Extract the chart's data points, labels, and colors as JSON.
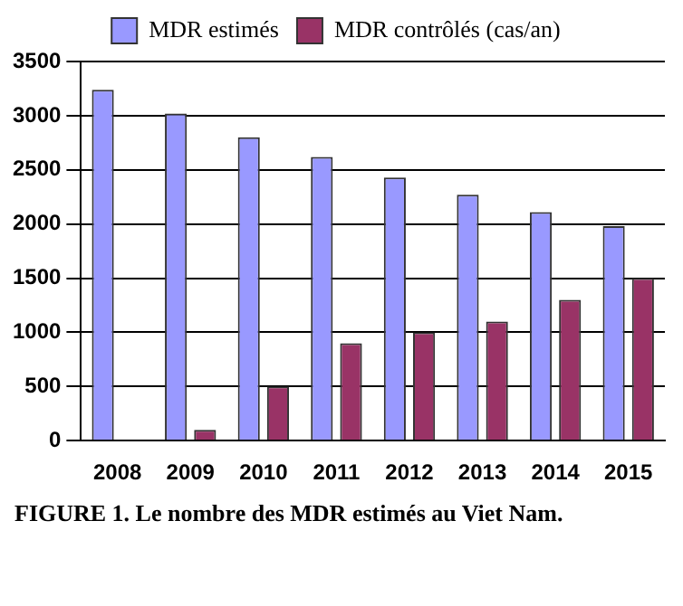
{
  "chart_data": {
    "type": "bar",
    "categories": [
      "2008",
      "2009",
      "2010",
      "2011",
      "2012",
      "2013",
      "2014",
      "2015"
    ],
    "series": [
      {
        "name": "MDR estimés",
        "color": "#9999ff",
        "values": [
          3240,
          3020,
          2800,
          2620,
          2430,
          2270,
          2110,
          1980
        ]
      },
      {
        "name": "MDR contrôlés (cas/an)",
        "color": "#993366",
        "values": [
          0,
          100,
          500,
          900,
          1000,
          1100,
          1300,
          1500
        ]
      }
    ],
    "ylim": [
      0,
      3500
    ],
    "yticks": [
      0,
      500,
      1000,
      1500,
      2000,
      2500,
      3000,
      3500
    ],
    "grid": "y",
    "legend": "top",
    "annotations": [
      "FIGURE 1. Le nombre des MDR estimés au Viet Nam."
    ]
  }
}
